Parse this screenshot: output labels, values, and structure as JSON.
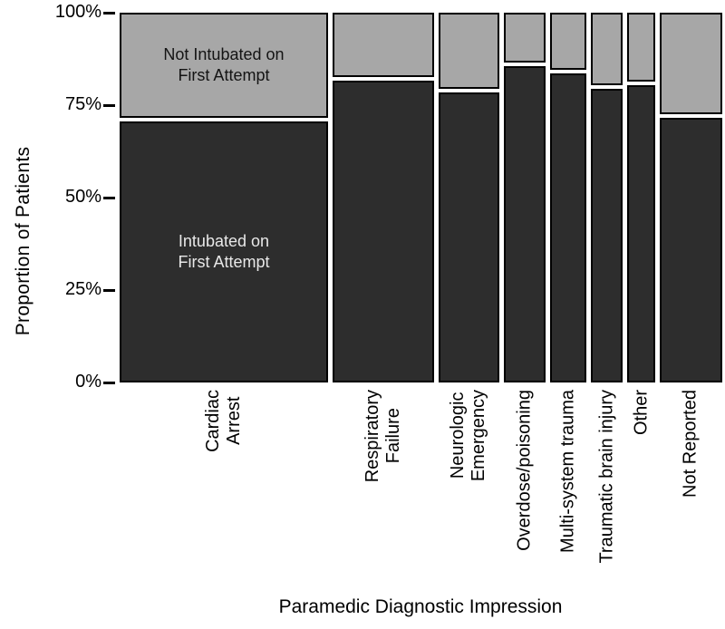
{
  "chart_data": {
    "type": "mosaic",
    "title": "",
    "xlabel": "Paramedic Diagnostic Impression",
    "ylabel": "Proportion of Patients",
    "ylim": [
      0,
      100
    ],
    "grid": false,
    "legend": "labels drawn inside first column segments",
    "y_ticks": [
      {
        "label": "100%",
        "value": 100
      },
      {
        "label": "75%",
        "value": 75
      },
      {
        "label": "50%",
        "value": 50
      },
      {
        "label": "25%",
        "value": 25
      },
      {
        "label": "0%",
        "value": 0
      }
    ],
    "series_labels": {
      "intubated": "Intubated on\nFirst Attempt",
      "not_intubated": "Not Intubated on\nFirst Attempt"
    },
    "categories": [
      {
        "label": "Cardiac\nArrest",
        "width_pct": 36.5,
        "intubated_pct": 71,
        "not_intubated_pct": 29
      },
      {
        "label": "Respiratory\nFailure",
        "width_pct": 17.8,
        "intubated_pct": 82,
        "not_intubated_pct": 18
      },
      {
        "label": "Neurologic\nEmergency",
        "width_pct": 10.6,
        "intubated_pct": 79,
        "not_intubated_pct": 21
      },
      {
        "label": "Overdose/poisoning",
        "width_pct": 7.3,
        "intubated_pct": 86,
        "not_intubated_pct": 14
      },
      {
        "label": "Multi-system trauma",
        "width_pct": 6.3,
        "intubated_pct": 84,
        "not_intubated_pct": 16
      },
      {
        "label": "Traumatic brain injury",
        "width_pct": 5.7,
        "intubated_pct": 80,
        "not_intubated_pct": 20
      },
      {
        "label": "Other",
        "width_pct": 4.8,
        "intubated_pct": 81,
        "not_intubated_pct": 19
      },
      {
        "label": "Not Reported",
        "width_pct": 11.0,
        "intubated_pct": 72,
        "not_intubated_pct": 28
      }
    ],
    "colors": {
      "intubated_fill": "#2d2d2d",
      "not_intubated_fill": "#a7a7a7",
      "border": "#000000",
      "intubated_text": "#e8e8e8",
      "not_intubated_text": "#141414",
      "axis_text": "#000000",
      "background": "#ffffff"
    }
  }
}
